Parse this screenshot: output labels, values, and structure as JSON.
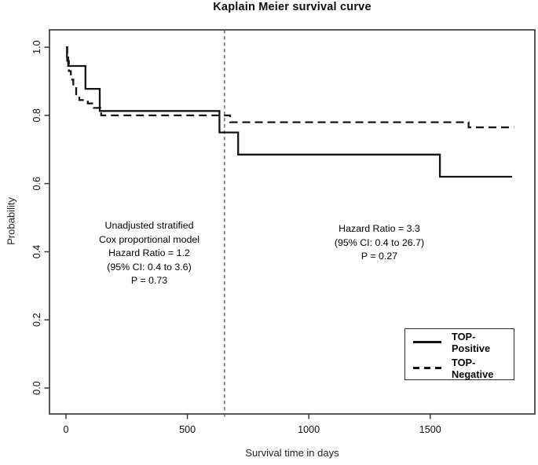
{
  "colors": {
    "curve": "#141414",
    "frame": "#3a3a3a",
    "tick": "#3a3a3a",
    "text": "#0d0d0d",
    "background": "#ffffff"
  },
  "chart_data": {
    "type": "line",
    "subtype": "kaplan-meier-step",
    "title": "Kaplain Meier survival curve",
    "xlabel": "Survival time in days",
    "ylabel": "Probability",
    "xlim": [
      -68,
      1931
    ],
    "ylim": [
      -0.076,
      1.051
    ],
    "x_ticks": [
      0,
      500,
      1000,
      1500
    ],
    "x_tick_labels": [
      "0",
      "500",
      "1000",
      "1500"
    ],
    "y_ticks": [
      1.0,
      0.8,
      0.6,
      0.4,
      0.2,
      0.0
    ],
    "y_tick_labels": [
      "1.0",
      "0.8",
      "0.6",
      "0.4",
      "0.2",
      "0.0"
    ],
    "grid": false,
    "legend_position": "bottom-right",
    "reference_line": {
      "type": "vertical-dashed",
      "x": 653
    },
    "series": [
      {
        "name": "TOP-Positive",
        "style": "solid",
        "color": "#141414",
        "points": [
          [
            0,
            1.0
          ],
          [
            4,
            0.97
          ],
          [
            9,
            0.945
          ],
          [
            80,
            0.878
          ],
          [
            139,
            0.813
          ],
          [
            632,
            0.75
          ],
          [
            709,
            0.685
          ],
          [
            1540,
            0.62
          ]
        ],
        "end_x": 1837
      },
      {
        "name": "TOP-Negative",
        "style": "dashed",
        "color": "#141414",
        "points": [
          [
            0,
            1.0
          ],
          [
            5,
            0.96
          ],
          [
            12,
            0.93
          ],
          [
            20,
            0.905
          ],
          [
            30,
            0.88
          ],
          [
            42,
            0.858
          ],
          [
            55,
            0.845
          ],
          [
            90,
            0.835
          ],
          [
            115,
            0.822
          ],
          [
            145,
            0.8
          ],
          [
            676,
            0.78
          ],
          [
            1658,
            0.765
          ]
        ],
        "end_x": 1845
      }
    ],
    "annotations": [
      {
        "id": "left",
        "lines": [
          "Unadjusted stratified",
          "Cox proportional model",
          "Hazard Ratio = 1.2",
          "(95% CI: 0.4 to 3.6)",
          "P = 0.73"
        ]
      },
      {
        "id": "right",
        "lines": [
          "Hazard Ratio = 3.3",
          "(95% CI: 0.4 to 26.7)",
          "P = 0.27"
        ]
      }
    ]
  },
  "legend": {
    "items": [
      {
        "label": "TOP-Positive",
        "style": "solid"
      },
      {
        "label": "TOP-Negative",
        "style": "dashed"
      }
    ]
  }
}
